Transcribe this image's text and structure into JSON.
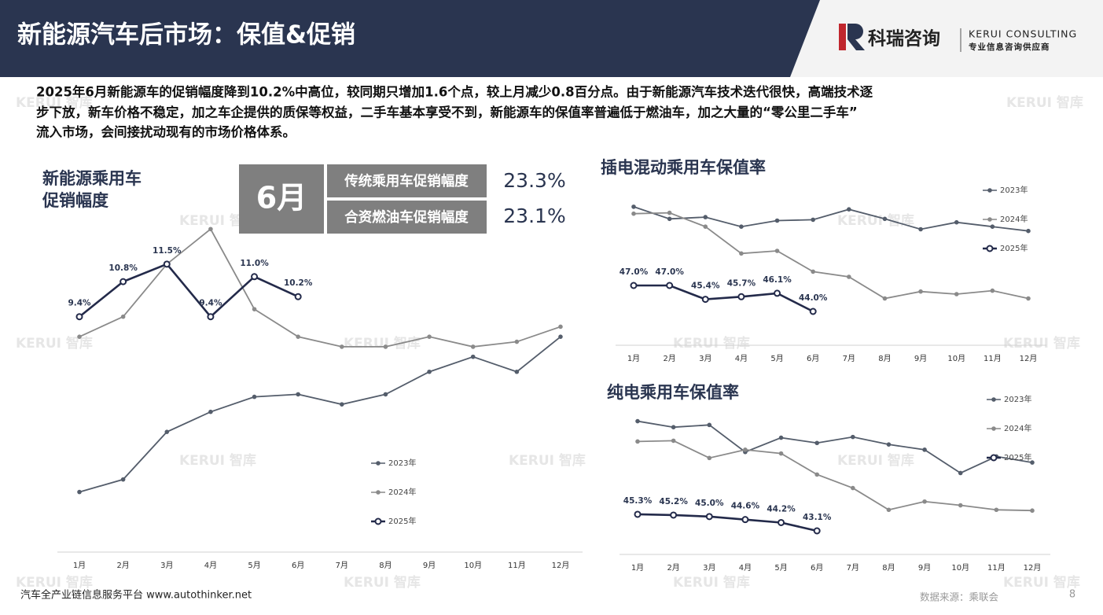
{
  "header": {
    "title": "新能源汽车后市场：保值&促销",
    "brand": "科瑞咨询",
    "brand_en": "KERUI CONSULTING",
    "brand_tagline": "专业信息咨询供应商"
  },
  "summary": [
    "2025年6月新能源车的促销幅度降到10.2%中高位，较同期只增加1.6个点，较上月减少0.8百分点。由于新能源汽车技术迭代很快，高端技术逐",
    "步下放，新车价格不稳定，加之车企提供的质保等权益，二手车基本享受不到，新能源车的保值率普遍低于燃油车，加之大量的“零公里二手车”",
    "流入市场，会间接扰动现有的市场价格体系。"
  ],
  "info_box": {
    "month": "6月",
    "rows": [
      {
        "label": "传统乘用车促销幅度",
        "value": "23.3%"
      },
      {
        "label": "合资燃油车促销幅度",
        "value": "23.1%"
      }
    ]
  },
  "watermark": "KERUI 智库",
  "footer": {
    "left": "汽车全产业链信息服务平台 www.autothinker.net",
    "source": "数据来源：乘联会",
    "page": "8"
  },
  "chart_data": [
    {
      "type": "line",
      "title": [
        "新能源乘用车",
        "促销幅度"
      ],
      "categories": [
        "1月",
        "2月",
        "3月",
        "4月",
        "5月",
        "6月",
        "7月",
        "8月",
        "9月",
        "10月",
        "11月",
        "12月"
      ],
      "ylim": [
        0,
        15
      ],
      "series": [
        {
          "name": "2023年",
          "color": "#545d6b",
          "values": [
            2.4,
            2.9,
            4.8,
            5.6,
            6.2,
            6.3,
            5.9,
            6.3,
            7.2,
            7.8,
            7.2,
            8.6
          ]
        },
        {
          "name": "2024年",
          "color": "#8a8a8a",
          "values": [
            8.6,
            9.4,
            11.5,
            12.9,
            9.7,
            8.6,
            8.2,
            8.2,
            8.6,
            8.2,
            8.4,
            9.0
          ]
        },
        {
          "name": "2025年",
          "color": "#232a4a",
          "values": [
            9.4,
            10.8,
            11.5,
            9.4,
            11.0,
            10.2,
            null,
            null,
            null,
            null,
            null,
            null
          ],
          "value_labels": [
            "9.4%",
            "10.8%",
            "11.5%",
            "9.4%",
            "11.0%",
            "10.2%",
            null,
            null,
            null,
            null,
            null,
            null
          ]
        }
      ]
    },
    {
      "type": "line",
      "title": "插电混动乘用车保值率",
      "categories": [
        "1月",
        "2月",
        "3月",
        "4月",
        "5月",
        "6月",
        "7月",
        "8月",
        "9月",
        "10月",
        "11月",
        "12月"
      ],
      "ylim": [
        40,
        60
      ],
      "series": [
        {
          "name": "2023年",
          "color": "#545d6b",
          "values": [
            56.1,
            54.7,
            54.9,
            53.8,
            54.5,
            54.6,
            55.8,
            54.7,
            53.5,
            54.3,
            53.8,
            53.3
          ]
        },
        {
          "name": "2024年",
          "color": "#8a8a8a",
          "values": [
            55.3,
            55.4,
            53.8,
            50.7,
            51.0,
            48.6,
            48.0,
            45.5,
            46.3,
            46.0,
            46.4,
            45.5
          ]
        },
        {
          "name": "2025年",
          "color": "#232a4a",
          "values": [
            47.0,
            47.0,
            45.4,
            45.7,
            46.1,
            44.0,
            null,
            null,
            null,
            null,
            null,
            null
          ],
          "value_labels": [
            "47.0%",
            "47.0%",
            "45.4%",
            "45.7%",
            "46.1%",
            "44.0%",
            null,
            null,
            null,
            null,
            null,
            null
          ]
        }
      ]
    },
    {
      "type": "line",
      "title": "纯电乘用车保值率",
      "categories": [
        "1月",
        "2月",
        "3月",
        "4月",
        "5月",
        "6月",
        "7月",
        "8月",
        "9月",
        "10月",
        "11月",
        "12月"
      ],
      "ylim": [
        40,
        60
      ],
      "series": [
        {
          "name": "2023年",
          "color": "#545d6b",
          "values": [
            57.7,
            56.9,
            57.2,
            53.6,
            55.5,
            54.8,
            55.6,
            54.6,
            53.9,
            50.8,
            53.0,
            52.2
          ]
        },
        {
          "name": "2024年",
          "color": "#8a8a8a",
          "values": [
            55.0,
            55.1,
            52.8,
            53.9,
            53.4,
            50.6,
            48.8,
            45.9,
            47.0,
            46.5,
            45.9,
            45.8
          ]
        },
        {
          "name": "2025年",
          "color": "#232a4a",
          "values": [
            45.3,
            45.2,
            45.0,
            44.6,
            44.2,
            43.1,
            null,
            null,
            null,
            null,
            null,
            null
          ],
          "value_labels": [
            "45.3%",
            "45.2%",
            "45.0%",
            "44.6%",
            "44.2%",
            "43.1%",
            null,
            null,
            null,
            null,
            null,
            null
          ]
        }
      ]
    }
  ]
}
